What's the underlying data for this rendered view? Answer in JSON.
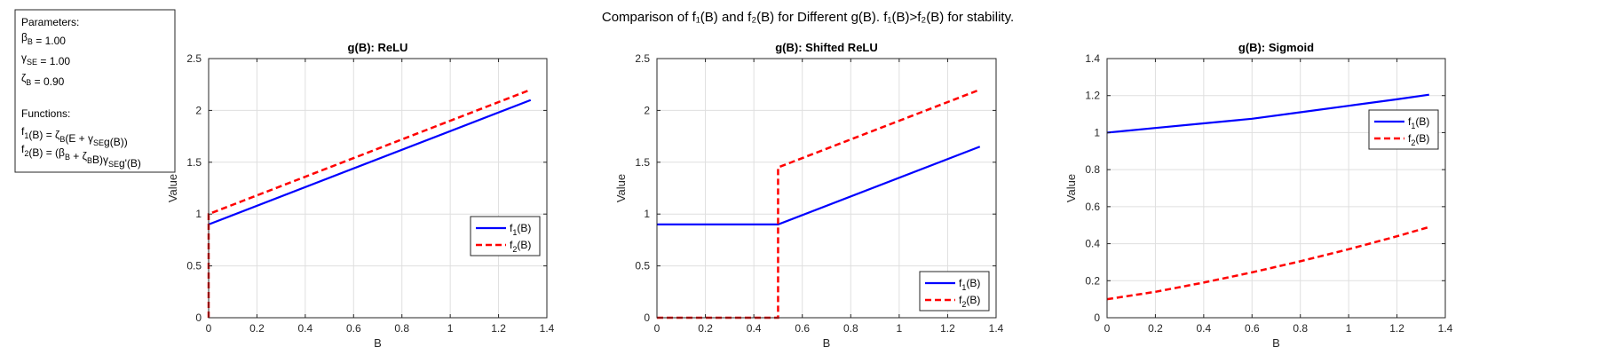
{
  "figure": {
    "suptitle": "Comparison of f₁(B) and f₂(B) for Different g(B). f₁(B)>f₂(B) for stability."
  },
  "params_box": {
    "lines": [
      "Parameters:",
      "βB = 1.00",
      "γSE = 1.00",
      "ζB = 0.90",
      "",
      "Functions:",
      "f1(B) = ζB(E + γSEg(B))",
      "f2(B) = (βB + ζBB)γSEg'(B)"
    ]
  },
  "colors": {
    "f1": "#0000ff",
    "f2": "#ff0000",
    "grid": "#dfdfdf",
    "axes": "#262626"
  },
  "chart_data": [
    {
      "type": "line",
      "title": "g(B): ReLU",
      "xlabel": "B",
      "ylabel": "Value",
      "xlim": [
        0,
        1.4
      ],
      "ylim": [
        0,
        2.5
      ],
      "xticks": [
        0,
        0.2,
        0.4,
        0.6,
        0.8,
        1,
        1.2,
        1.4
      ],
      "yticks": [
        0,
        0.5,
        1,
        1.5,
        2,
        2.5
      ],
      "xticklabels": [
        "0",
        "0.2",
        "0.4",
        "0.6",
        "0.8",
        "1",
        "1.2",
        "1.4"
      ],
      "yticklabels": [
        "0",
        "0.5",
        "1",
        "1.5",
        "2",
        "2.5"
      ],
      "grid": true,
      "legend_position": "center-right",
      "series": [
        {
          "name": "f1(B)",
          "style": "solid",
          "color": "#0000ff",
          "points": [
            [
              0,
              0.9
            ],
            [
              1.333,
              2.1
            ]
          ]
        },
        {
          "name": "f2(B)",
          "style": "dashed",
          "color": "#ff0000",
          "points": [
            [
              0,
              0
            ],
            [
              0,
              1.0
            ],
            [
              1.333,
              2.2
            ]
          ]
        }
      ]
    },
    {
      "type": "line",
      "title": "g(B): Shifted ReLU",
      "xlabel": "B",
      "ylabel": "Value",
      "xlim": [
        0,
        1.4
      ],
      "ylim": [
        0,
        2.5
      ],
      "xticks": [
        0,
        0.2,
        0.4,
        0.6,
        0.8,
        1,
        1.2,
        1.4
      ],
      "yticks": [
        0,
        0.5,
        1,
        1.5,
        2,
        2.5
      ],
      "xticklabels": [
        "0",
        "0.2",
        "0.4",
        "0.6",
        "0.8",
        "1",
        "1.2",
        "1.4"
      ],
      "yticklabels": [
        "0",
        "0.5",
        "1",
        "1.5",
        "2",
        "2.5"
      ],
      "grid": true,
      "legend_position": "bottom-right",
      "series": [
        {
          "name": "f1(B)",
          "style": "solid",
          "color": "#0000ff",
          "points": [
            [
              0,
              0.9
            ],
            [
              0.5,
              0.9
            ],
            [
              1.333,
              1.65
            ]
          ]
        },
        {
          "name": "f2(B)",
          "style": "dashed",
          "color": "#ff0000",
          "points": [
            [
              0,
              0
            ],
            [
              0.5,
              0
            ],
            [
              0.5,
              1.45
            ],
            [
              1.333,
              2.2
            ]
          ]
        }
      ]
    },
    {
      "type": "line",
      "title": "g(B): Sigmoid",
      "xlabel": "B",
      "ylabel": "Value",
      "xlim": [
        0,
        1.4
      ],
      "ylim": [
        0,
        1.4
      ],
      "xticks": [
        0,
        0.2,
        0.4,
        0.6,
        0.8,
        1,
        1.2,
        1.4
      ],
      "yticks": [
        0,
        0.2,
        0.4,
        0.6,
        0.8,
        1,
        1.2,
        1.4
      ],
      "xticklabels": [
        "0",
        "0.2",
        "0.4",
        "0.6",
        "0.8",
        "1",
        "1.2",
        "1.4"
      ],
      "yticklabels": [
        "0",
        "0.2",
        "0.4",
        "0.6",
        "0.8",
        "1",
        "1.2",
        "1.4"
      ],
      "grid": true,
      "legend_position": "top-right",
      "series": [
        {
          "name": "f1(B)",
          "style": "solid",
          "color": "#0000ff",
          "points": [
            [
              0,
              1.0
            ],
            [
              0.2,
              1.025
            ],
            [
              0.4,
              1.05
            ],
            [
              0.6,
              1.075
            ],
            [
              0.8,
              1.11
            ],
            [
              1.0,
              1.145
            ],
            [
              1.2,
              1.18
            ],
            [
              1.333,
              1.205
            ]
          ]
        },
        {
          "name": "f2(B)",
          "style": "dashed",
          "color": "#ff0000",
          "points": [
            [
              0,
              0.1
            ],
            [
              0.2,
              0.14
            ],
            [
              0.4,
              0.19
            ],
            [
              0.6,
              0.245
            ],
            [
              0.8,
              0.305
            ],
            [
              1.0,
              0.37
            ],
            [
              1.2,
              0.44
            ],
            [
              1.333,
              0.49
            ]
          ]
        }
      ]
    }
  ]
}
